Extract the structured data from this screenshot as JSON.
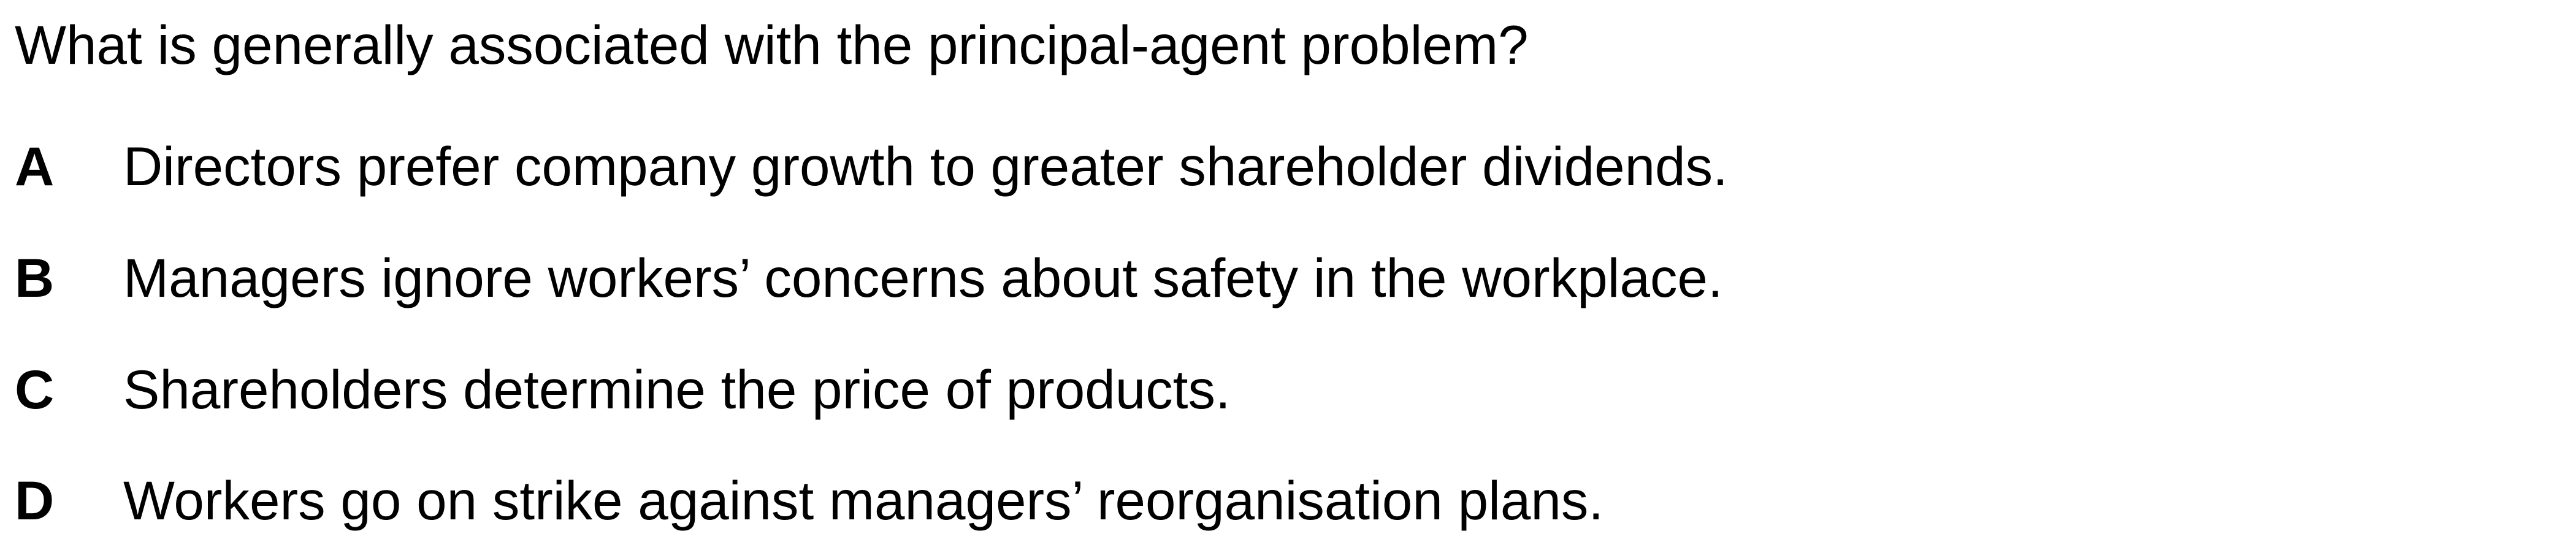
{
  "question": "What is generally associated with the principal-agent problem?",
  "options": [
    {
      "letter": "A",
      "text": "Directors prefer company growth to greater shareholder dividends."
    },
    {
      "letter": "B",
      "text": "Managers ignore workers’ concerns about safety in the workplace."
    },
    {
      "letter": "C",
      "text": "Shareholders determine the price of products."
    },
    {
      "letter": "D",
      "text": "Workers go on strike against managers’ reorganisation plans."
    }
  ]
}
